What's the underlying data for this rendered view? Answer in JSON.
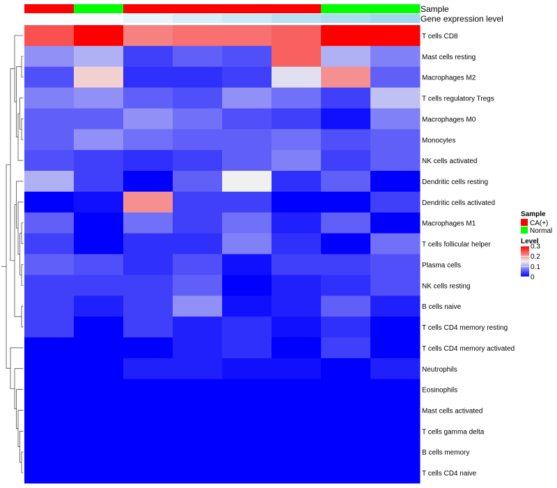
{
  "chart_data": {
    "type": "heatmap",
    "title": "",
    "annotation_rows": [
      "Sample",
      "Gene expression level"
    ],
    "columns": [
      {
        "sample": "CA(+)",
        "expression_level": 0.95
      },
      {
        "sample": "Normal",
        "expression_level": 0.95
      },
      {
        "sample": "CA(+)",
        "expression_level": 0.8
      },
      {
        "sample": "CA(+)",
        "expression_level": 0.65
      },
      {
        "sample": "CA(+)",
        "expression_level": 0.55
      },
      {
        "sample": "CA(+)",
        "expression_level": 0.4
      },
      {
        "sample": "Normal",
        "expression_level": 0.3
      },
      {
        "sample": "Normal",
        "expression_level": 0.2
      }
    ],
    "rows": [
      "T cells CD8",
      "Mast cells resting",
      "Macrophages M2",
      "T cells regulatory  Tregs",
      "Macrophages M0",
      "Monocytes",
      "NK cells activated",
      "Dendritic cells resting",
      "Dendritic cells activated",
      "Macrophages M1",
      "T cells follicular helper",
      "Plasma cells",
      "NK cells resting",
      "B cells naive",
      "T cells CD4 memory resting",
      "T cells CD4 memory activated",
      "Neutrophils",
      "Eosinophils",
      "Mast cells activated",
      "T cells gamma delta",
      "B cells memory",
      "T cells CD4 naive"
    ],
    "values": [
      [
        0.25,
        0.3,
        0.22,
        0.23,
        0.23,
        0.24,
        0.3,
        0.3
      ],
      [
        0.09,
        0.11,
        0.04,
        0.06,
        0.05,
        0.24,
        0.11,
        0.08
      ],
      [
        0.05,
        0.17,
        0.03,
        0.03,
        0.04,
        0.14,
        0.21,
        0.06
      ],
      [
        0.08,
        0.09,
        0.06,
        0.05,
        0.09,
        0.07,
        0.04,
        0.12
      ],
      [
        0.06,
        0.06,
        0.09,
        0.07,
        0.05,
        0.04,
        0.01,
        0.08
      ],
      [
        0.06,
        0.09,
        0.07,
        0.06,
        0.06,
        0.07,
        0.05,
        0.06
      ],
      [
        0.05,
        0.04,
        0.03,
        0.04,
        0.06,
        0.08,
        0.04,
        0.06
      ],
      [
        0.11,
        0.04,
        0.0,
        0.06,
        0.15,
        0.03,
        0.06,
        0.0
      ],
      [
        0.0,
        0.01,
        0.21,
        0.04,
        0.04,
        0.0,
        0.0,
        0.04
      ],
      [
        0.06,
        0.0,
        0.07,
        0.04,
        0.07,
        0.02,
        0.06,
        0.0
      ],
      [
        0.04,
        0.0,
        0.03,
        0.03,
        0.08,
        0.03,
        0.0,
        0.07
      ],
      [
        0.06,
        0.05,
        0.03,
        0.05,
        0.01,
        0.04,
        0.04,
        0.05
      ],
      [
        0.04,
        0.04,
        0.04,
        0.06,
        0.0,
        0.02,
        0.03,
        0.05
      ],
      [
        0.04,
        0.02,
        0.04,
        0.09,
        0.01,
        0.02,
        0.06,
        0.02
      ],
      [
        0.04,
        0.0,
        0.04,
        0.02,
        0.03,
        0.01,
        0.03,
        0.0
      ],
      [
        0.0,
        0.0,
        0.0,
        0.02,
        0.03,
        0.0,
        0.04,
        0.0
      ],
      [
        0.0,
        0.0,
        0.02,
        0.02,
        0.01,
        0.01,
        0.0,
        0.02
      ],
      [
        0.0,
        0.0,
        0.0,
        0.0,
        0.0,
        0.0,
        0.0,
        0.0
      ],
      [
        0.0,
        0.0,
        0.0,
        0.0,
        0.0,
        0.0,
        0.0,
        0.0
      ],
      [
        0.0,
        0.0,
        0.0,
        0.0,
        0.0,
        0.0,
        0.0,
        0.0
      ],
      [
        0.0,
        0.0,
        0.0,
        0.0,
        0.0,
        0.0,
        0.0,
        0.0
      ],
      [
        0.0,
        0.0,
        0.0,
        0.0,
        0.0,
        0.0,
        0.0,
        0.0
      ]
    ],
    "legend": {
      "sample_title": "Sample",
      "sample_entries": [
        {
          "label": "CA(+)",
          "color": "#ff0000"
        },
        {
          "label": "Normal",
          "color": "#00ff00"
        }
      ],
      "level_title": "Level",
      "level_ticks": [
        "0.3",
        "0.2",
        "0.1",
        "0"
      ],
      "level_tick_values": [
        0.3,
        0.2,
        0.1,
        0.0
      ]
    },
    "color_scale": {
      "min": 0,
      "max": 0.3,
      "low": "#0000ff",
      "mid": "#f0f0f0",
      "high": "#ff0000"
    },
    "expression_scale": {
      "low": "#87ceeb",
      "high": "#ffffff"
    }
  }
}
